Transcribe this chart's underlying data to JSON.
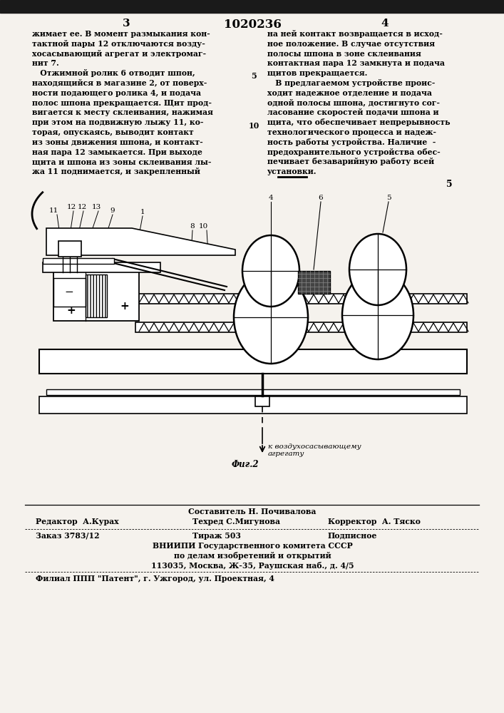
{
  "bg_color": "#e8e4dd",
  "page_bg": "#f5f2ed",
  "page_number_left": "3",
  "page_number_center": "1020236",
  "page_number_right": "4",
  "col1_text": [
    "жимает ее. В момент размыкания кон-",
    "тактной пары 12 отключаются возду-",
    "хосасывающий агрегат и электромаг-",
    "нит 7.",
    "   Отжимной ролик 6 отводит шпон,",
    "находящийся в магазине 2, от поверх-",
    "ности подающего ролика 4, и подача",
    "полос шпона прекращается. Щит прод-",
    "вигается к месту склеивания, нажимая",
    "при этом на подвижную лыжу 11, ко-",
    "торая, опускаясь, выводит контакт",
    "из зоны движения шпона, и контакт-",
    "ная пара 12 замыкается. При выходе",
    "щита и шпона из зоны склеивания лы-",
    "жа 11 поднимается, и закрепленный"
  ],
  "col2_text": [
    "на ней контакт возвращается в исход-",
    "ное положение. В случае отсутствия",
    "полосы шпона в зоне склеивания",
    "контактная пара 12 замкнута и подача",
    "щитов прекращается.",
    "   В предлагаемом устройстве проис-",
    "ходит надежное отделение и подача",
    "одной полосы шпона, достигнуто сог-",
    "ласование скоростей подачи шпона и",
    "щита, что обеспечивает непрерывность",
    "технологического процесса и надеж-",
    "ность работы устройства. Наличие  -",
    "предохранительного устройства обес-",
    "печивает безаварийную работу всей",
    "установки."
  ],
  "line_numbers_mid": [
    "5",
    "10"
  ],
  "footer_editor": "Редактор  А.Курах",
  "footer_composer": "Составитель Н. Почивалова",
  "footer_tech": "Техред С.Мигунова",
  "footer_corrector": "Корректор  А. Тяско",
  "footer_order": "Заказ 3783/12",
  "footer_tirazh": "Тираж 503",
  "footer_podpisnoe": "Подписное",
  "footer_vnipi": "ВНИИПИ Государственного комитета СССР",
  "footer_vnipi2": "по делам изобретений и открытий",
  "footer_address": "113035, Москва, Ж-35, Раушская наб., д. 4/5",
  "footer_filial": "Филиал ППП \"Патент\", г. Ужгород, ул. Проектная, 4",
  "fig_label": "Фиг.2",
  "arrow_label": "к воздухосасывающему\nагрегату"
}
